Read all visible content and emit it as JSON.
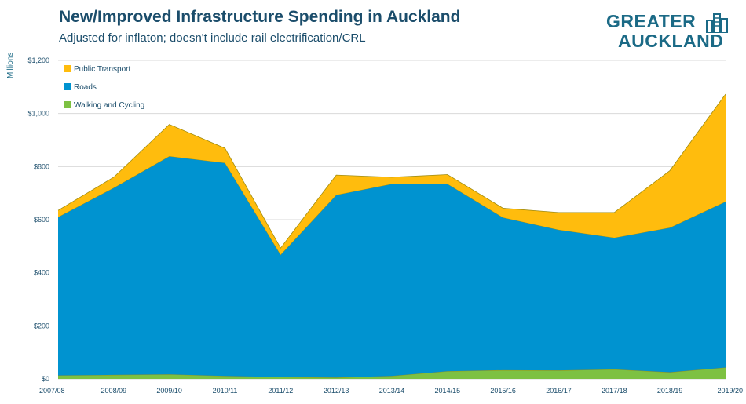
{
  "header": {
    "title": "New/Improved Infrastructure Spending in Auckland",
    "subtitle": "Adjusted for inflaton; doesn't include rail electrification/CRL"
  },
  "logo": {
    "line1": "GREATER",
    "line2": "AUCKLAND"
  },
  "chart_data": {
    "type": "area",
    "stacked": true,
    "ylabel": "Millions",
    "ylim": [
      0,
      1200
    ],
    "yticks": [
      0,
      200,
      400,
      600,
      800,
      1000,
      1200
    ],
    "ytick_labels": [
      "$0",
      "$200",
      "$400",
      "$600",
      "$800",
      "$1,000",
      "$1,200"
    ],
    "categories": [
      "2007/08",
      "2008/09",
      "2009/10",
      "2010/11",
      "2011/12",
      "2012/13",
      "2013/14",
      "2014/15",
      "2015/16",
      "2016/17",
      "2017/18",
      "2018/19",
      "2019/20"
    ],
    "series": [
      {
        "name": "Walking and Cycling",
        "color": "#7dc142",
        "values": [
          13,
          15,
          17,
          11,
          7,
          5,
          11,
          29,
          33,
          32,
          36,
          25,
          43
        ]
      },
      {
        "name": "Roads",
        "color": "#0093d0",
        "values": [
          597,
          705,
          822,
          803,
          461,
          688,
          724,
          706,
          575,
          530,
          496,
          545,
          625
        ]
      },
      {
        "name": "Public Transport",
        "color": "#ffbc0d",
        "values": [
          25,
          40,
          120,
          55,
          25,
          75,
          25,
          35,
          35,
          65,
          95,
          215,
          405
        ]
      }
    ],
    "legend_position": "top-left",
    "grid": true,
    "line_color": "#a08c10"
  }
}
